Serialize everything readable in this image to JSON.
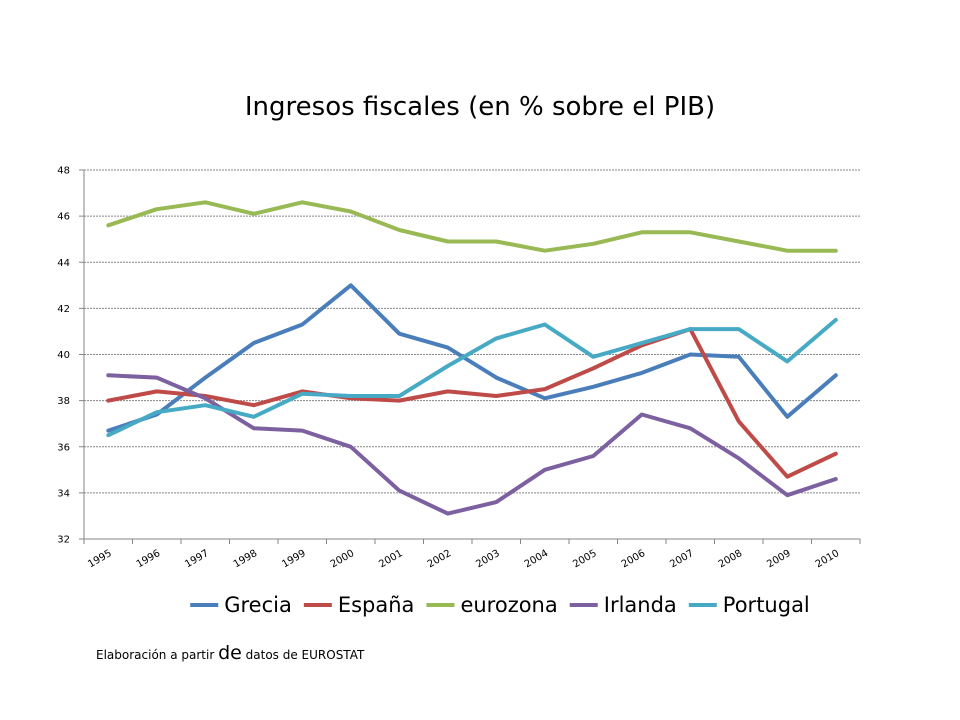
{
  "chart_data": {
    "type": "line",
    "title": "Ingresos fiscales (en % sobre el PIB)",
    "x": [
      "1995",
      "1996",
      "1997",
      "1998",
      "1999",
      "2000",
      "2001",
      "2002",
      "2003",
      "2004",
      "2005",
      "2006",
      "2007",
      "2008",
      "2009",
      "2010"
    ],
    "ylim": [
      32,
      48
    ],
    "yticks": [
      32,
      34,
      36,
      38,
      40,
      42,
      44,
      46,
      48
    ],
    "grid": true,
    "legend_position": "bottom",
    "series": [
      {
        "name": "Grecia",
        "color": "#4a7ebb",
        "values": [
          36.7,
          37.4,
          39.0,
          40.5,
          41.3,
          43.0,
          40.9,
          40.3,
          39.0,
          38.1,
          38.6,
          39.2,
          40.0,
          39.9,
          37.3,
          39.1
        ]
      },
      {
        "name": "España",
        "color": "#be4b48",
        "values": [
          38.0,
          38.4,
          38.2,
          37.8,
          38.4,
          38.1,
          38.0,
          38.4,
          38.2,
          38.5,
          39.4,
          40.4,
          41.1,
          37.1,
          34.7,
          35.7
        ]
      },
      {
        "name": "eurozona",
        "color": "#98b954",
        "values": [
          45.6,
          46.3,
          46.6,
          46.1,
          46.6,
          46.2,
          45.4,
          44.9,
          44.9,
          44.5,
          44.8,
          45.3,
          45.3,
          44.9,
          44.5,
          44.5
        ]
      },
      {
        "name": "Irlanda",
        "color": "#7d60a0",
        "values": [
          39.1,
          39.0,
          38.1,
          36.8,
          36.7,
          36.0,
          34.1,
          33.1,
          33.6,
          35.0,
          35.6,
          37.4,
          36.8,
          35.5,
          33.9,
          34.6
        ]
      },
      {
        "name": "Portugal",
        "color": "#46aac5",
        "values": [
          36.5,
          37.5,
          37.8,
          37.3,
          38.3,
          38.2,
          38.2,
          39.5,
          40.7,
          41.3,
          39.9,
          40.5,
          41.1,
          41.1,
          39.7,
          41.5
        ]
      }
    ]
  },
  "note": {
    "prefix": "Elaboración a partir ",
    "big": "de",
    "suffix": " datos de EUROSTAT"
  }
}
